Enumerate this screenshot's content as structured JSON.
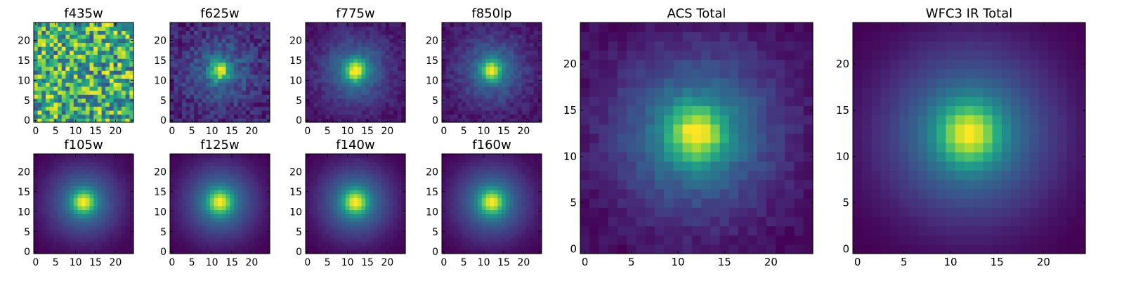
{
  "chart_data": [
    {
      "type": "heatmap",
      "title": "f435w",
      "pattern": "noise",
      "xticks": [
        0,
        5,
        10,
        15,
        20
      ],
      "yticks": [
        0,
        5,
        10,
        15,
        20
      ],
      "xlim": [
        0,
        24
      ],
      "ylim": [
        0,
        24
      ],
      "grid_size": 25,
      "center": [
        12,
        12.5
      ]
    },
    {
      "type": "heatmap",
      "title": "f625w",
      "pattern": "galaxy",
      "peak_sigma": 1.6,
      "halo_sigma": 6.0,
      "halo_weight": 0.3,
      "noise": 0.22,
      "xticks": [
        0,
        5,
        10,
        15,
        20
      ],
      "yticks": [
        0,
        5,
        10,
        15,
        20
      ],
      "xlim": [
        0,
        24
      ],
      "ylim": [
        0,
        24
      ],
      "grid_size": 25,
      "center": [
        12,
        12.5
      ]
    },
    {
      "type": "heatmap",
      "title": "f775w",
      "pattern": "galaxy",
      "peak_sigma": 1.8,
      "halo_sigma": 6.0,
      "halo_weight": 0.35,
      "noise": 0.1,
      "xticks": [
        0,
        5,
        10,
        15,
        20
      ],
      "yticks": [
        0,
        5,
        10,
        15,
        20
      ],
      "xlim": [
        0,
        24
      ],
      "ylim": [
        0,
        24
      ],
      "grid_size": 25,
      "center": [
        12,
        12.5
      ]
    },
    {
      "type": "heatmap",
      "title": "f850lp",
      "pattern": "galaxy",
      "peak_sigma": 1.8,
      "halo_sigma": 6.0,
      "halo_weight": 0.35,
      "noise": 0.12,
      "xticks": [
        0,
        5,
        10,
        15,
        20
      ],
      "yticks": [
        0,
        5,
        10,
        15,
        20
      ],
      "xlim": [
        0,
        24
      ],
      "ylim": [
        0,
        24
      ],
      "grid_size": 25,
      "center": [
        12,
        12.5
      ]
    },
    {
      "type": "heatmap",
      "title": "f105w",
      "pattern": "galaxy",
      "peak_sigma": 2.0,
      "halo_sigma": 6.5,
      "halo_weight": 0.4,
      "noise": 0.02,
      "xticks": [
        0,
        5,
        10,
        15,
        20
      ],
      "yticks": [
        0,
        5,
        10,
        15,
        20
      ],
      "xlim": [
        0,
        24
      ],
      "ylim": [
        0,
        24
      ],
      "grid_size": 25,
      "center": [
        12,
        12.5
      ]
    },
    {
      "type": "heatmap",
      "title": "f125w",
      "pattern": "galaxy",
      "peak_sigma": 2.1,
      "halo_sigma": 6.5,
      "halo_weight": 0.42,
      "noise": 0.02,
      "xticks": [
        0,
        5,
        10,
        15,
        20
      ],
      "yticks": [
        0,
        5,
        10,
        15,
        20
      ],
      "xlim": [
        0,
        24
      ],
      "ylim": [
        0,
        24
      ],
      "grid_size": 25,
      "center": [
        12,
        12.5
      ]
    },
    {
      "type": "heatmap",
      "title": "f140w",
      "pattern": "galaxy",
      "peak_sigma": 2.1,
      "halo_sigma": 6.5,
      "halo_weight": 0.42,
      "noise": 0.02,
      "xticks": [
        0,
        5,
        10,
        15,
        20
      ],
      "yticks": [
        0,
        5,
        10,
        15,
        20
      ],
      "xlim": [
        0,
        24
      ],
      "ylim": [
        0,
        24
      ],
      "grid_size": 25,
      "center": [
        12,
        12.5
      ]
    },
    {
      "type": "heatmap",
      "title": "f160w",
      "pattern": "galaxy",
      "peak_sigma": 2.1,
      "halo_sigma": 6.5,
      "halo_weight": 0.42,
      "noise": 0.02,
      "xticks": [
        0,
        5,
        10,
        15,
        20
      ],
      "yticks": [
        0,
        5,
        10,
        15,
        20
      ],
      "xlim": [
        0,
        24
      ],
      "ylim": [
        0,
        24
      ],
      "grid_size": 25,
      "center": [
        12,
        12.5
      ]
    },
    {
      "type": "heatmap",
      "title": "ACS Total",
      "pattern": "galaxy",
      "peak_sigma": 2.0,
      "halo_sigma": 6.0,
      "halo_weight": 0.45,
      "noise": 0.08,
      "xticks": [
        0,
        5,
        10,
        15,
        20
      ],
      "yticks": [
        0,
        5,
        10,
        15,
        20
      ],
      "xlim": [
        0,
        24
      ],
      "ylim": [
        0,
        24
      ],
      "grid_size": 25,
      "center": [
        12,
        12.5
      ]
    },
    {
      "type": "heatmap",
      "title": "WFC3 IR Total",
      "pattern": "galaxy",
      "peak_sigma": 2.2,
      "halo_sigma": 6.5,
      "halo_weight": 0.45,
      "noise": 0.01,
      "xticks": [
        0,
        5,
        10,
        15,
        20
      ],
      "yticks": [
        0,
        5,
        10,
        15,
        20
      ],
      "xlim": [
        0,
        24
      ],
      "ylim": [
        0,
        24
      ],
      "grid_size": 25,
      "center": [
        12,
        12.5
      ]
    }
  ],
  "colormap": [
    "#440154",
    "#472d7b",
    "#3b528b",
    "#2c728e",
    "#21918c",
    "#28ae80",
    "#5ec962",
    "#addc30",
    "#fde725"
  ]
}
